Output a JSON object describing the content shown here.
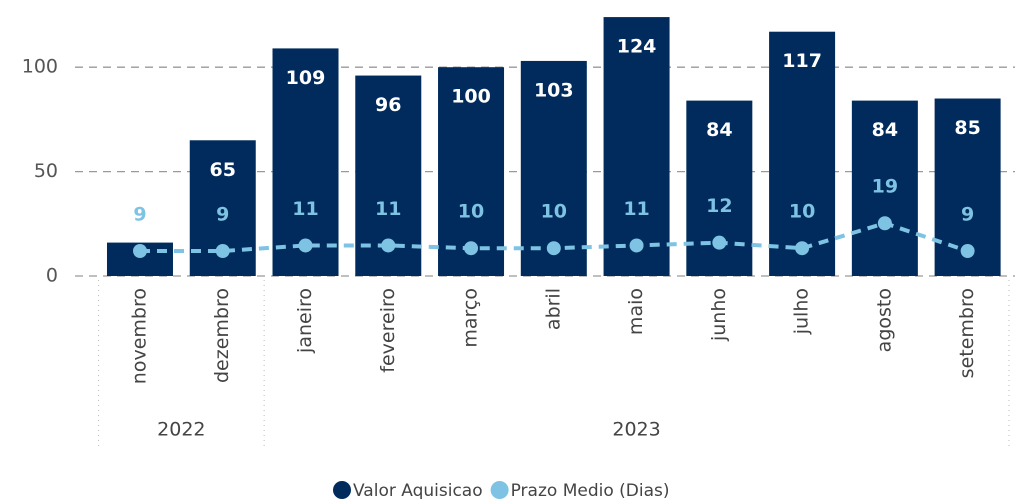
{
  "chart_data": {
    "type": "bar-line",
    "groups": [
      {
        "label": "2022",
        "categories": [
          "novembro",
          "dezembro"
        ]
      },
      {
        "label": "2023",
        "categories": [
          "janeiro",
          "fevereiro",
          "março",
          "abril",
          "maio",
          "junho",
          "julho",
          "agosto",
          "setembro"
        ]
      }
    ],
    "series": [
      {
        "name": "Valor Aquisicao",
        "color": "#002b5c",
        "values": [
          16,
          65,
          109,
          96,
          100,
          103,
          124,
          84,
          117,
          84,
          85
        ],
        "value_labels": [
          null,
          "65",
          "109",
          "96",
          "100",
          "103",
          "124",
          "84",
          "117",
          "84",
          "85"
        ]
      },
      {
        "name": "Prazo Medio (Dias)",
        "color": "#7ec3e3",
        "axis": "y2",
        "values": [
          9,
          9,
          11,
          11,
          10,
          10,
          11,
          12,
          10,
          19,
          9
        ]
      }
    ],
    "ylim": [
      0,
      125
    ],
    "yticks": [
      0,
      50,
      100
    ],
    "y2lim": [
      0,
      94
    ],
    "grid": true
  }
}
